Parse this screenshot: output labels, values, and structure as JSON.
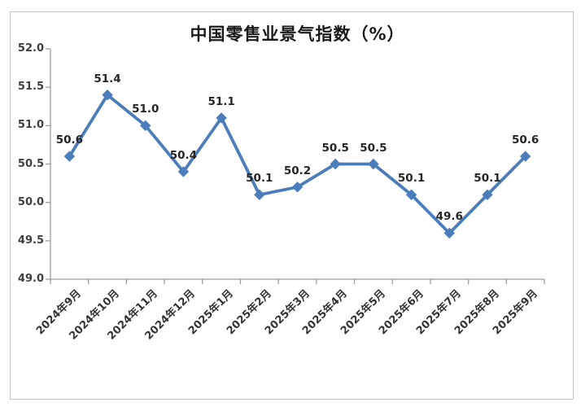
{
  "chart_data": {
    "type": "line",
    "title": "中国零售业景气指数（%）",
    "categories": [
      "2024年9月",
      "2024年10月",
      "2024年11月",
      "2024年12月",
      "2025年1月",
      "2025年2月",
      "2025年3月",
      "2025年4月",
      "2025年5月",
      "2025年6月",
      "2025年7月",
      "2025年8月",
      "2025年9月"
    ],
    "values": [
      50.6,
      51.4,
      51.0,
      50.4,
      51.1,
      50.1,
      50.2,
      50.5,
      50.5,
      50.1,
      49.6,
      50.1,
      50.6
    ],
    "xlabel": "",
    "ylabel": "",
    "ylim": [
      49.0,
      52.0
    ],
    "ytick_step": 0.5,
    "grid": false,
    "legend": "none",
    "data_labels": true,
    "marker": "diamond",
    "colors": {
      "line": "#4b7dbb",
      "marker": "#4b7dbb",
      "axis": "#9d9d9d",
      "tick_text": "#404040",
      "data_label_text": "#262626",
      "title_text": "#1a1a1a",
      "frame_border": "#c3c3c3"
    }
  }
}
